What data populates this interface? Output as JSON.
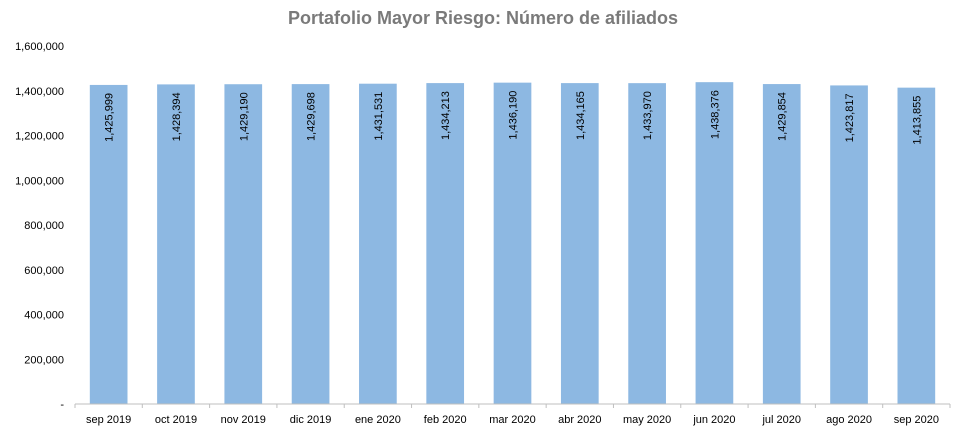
{
  "chart_data": {
    "type": "bar",
    "title": "Portafolio Mayor Riesgo: Número de afiliados",
    "xlabel": "",
    "ylabel": "",
    "categories": [
      "sep 2019",
      "oct 2019",
      "nov 2019",
      "dic 2019",
      "ene 2020",
      "feb 2020",
      "mar 2020",
      "abr 2020",
      "may 2020",
      "jun 2020",
      "jul 2020",
      "ago 2020",
      "sep 2020"
    ],
    "values": [
      1425999,
      1428394,
      1429190,
      1429698,
      1431531,
      1434213,
      1436190,
      1434165,
      1433970,
      1438376,
      1429854,
      1423817,
      1413855
    ],
    "value_labels": [
      "1,425,999",
      "1,428,394",
      "1,429,190",
      "1,429,698",
      "1,431,531",
      "1,434,213",
      "1,436,190",
      "1,434,165",
      "1,433,970",
      "1,438,376",
      "1,429,854",
      "1,423,817",
      "1,413,855"
    ],
    "ylim": [
      0,
      1600000
    ],
    "yticks": [
      0,
      200000,
      400000,
      600000,
      800000,
      1000000,
      1200000,
      1400000,
      1600000
    ],
    "ytick_labels": [
      "-",
      "200,000",
      "400,000",
      "600,000",
      "800,000",
      "1,000,000",
      "1,200,000",
      "1,400,000",
      "1,600,000"
    ],
    "grid": false,
    "legend": "none",
    "colors": {
      "bar": "#8db8e2",
      "title": "#7a7a7a",
      "axis": "#bfbfbf",
      "text": "#000000"
    }
  }
}
